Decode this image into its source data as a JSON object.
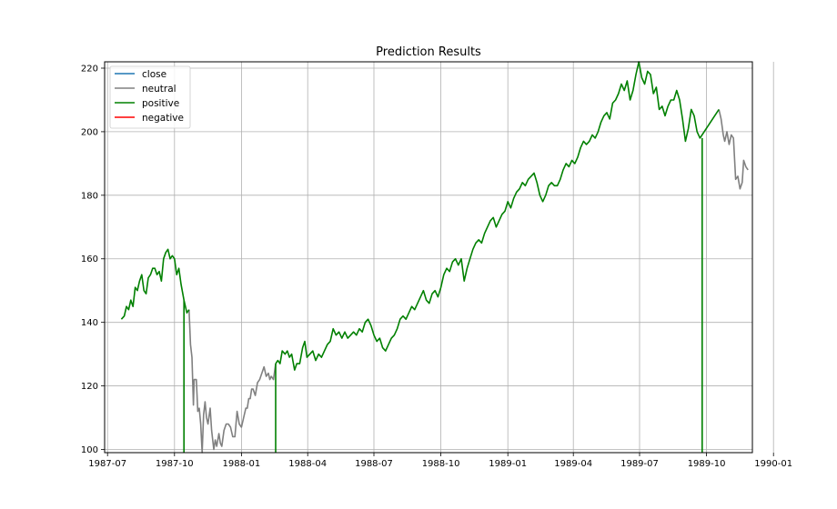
{
  "chart_data": {
    "type": "line",
    "title": "Prediction Results",
    "xlabel": "",
    "ylabel": "",
    "x_range": [
      "1987-06-27",
      "1989-12-03"
    ],
    "ylim": [
      99,
      222
    ],
    "grid": true,
    "legend_position": "top-left",
    "x_ticks": [
      "1987-07",
      "1987-10",
      "1988-01",
      "1988-04",
      "1988-07",
      "1988-10",
      "1989-01",
      "1989-04",
      "1989-07",
      "1989-10",
      "1990-01"
    ],
    "y_ticks": [
      100,
      120,
      140,
      160,
      180,
      200,
      220
    ],
    "legend": [
      {
        "name": "close",
        "color": "#1f77b4"
      },
      {
        "name": "neutral",
        "color": "#808080"
      },
      {
        "name": "positive",
        "color": "#008000"
      },
      {
        "name": "negative",
        "color": "#ff0000"
      }
    ],
    "series": [
      {
        "name": "neutral",
        "color": "#808080",
        "points": [
          [
            "1987-10-21",
            144
          ],
          [
            "1987-10-23",
            133
          ],
          [
            "1987-10-25",
            129
          ],
          [
            "1987-10-27",
            114
          ],
          [
            "1987-10-28",
            122
          ],
          [
            "1987-10-31",
            122
          ],
          [
            "1987-11-02",
            112
          ],
          [
            "1987-11-04",
            113
          ],
          [
            "1987-11-06",
            108
          ],
          [
            "1987-11-08",
            99
          ],
          [
            "1987-11-10",
            111
          ],
          [
            "1987-11-12",
            115
          ],
          [
            "1987-11-14",
            110
          ],
          [
            "1987-11-16",
            108
          ],
          [
            "1987-11-19",
            113
          ],
          [
            "1987-11-21",
            106
          ],
          [
            "1987-11-24",
            100
          ],
          [
            "1987-11-26",
            103
          ],
          [
            "1987-11-28",
            101
          ],
          [
            "1987-12-01",
            105
          ],
          [
            "1987-12-03",
            102
          ],
          [
            "1987-12-05",
            101
          ],
          [
            "1987-12-08",
            106
          ],
          [
            "1987-12-11",
            108
          ],
          [
            "1987-12-14",
            108
          ],
          [
            "1987-12-17",
            107
          ],
          [
            "1987-12-20",
            104
          ],
          [
            "1987-12-23",
            104
          ],
          [
            "1987-12-26",
            112
          ],
          [
            "1987-12-29",
            108
          ],
          [
            "1988-01-01",
            107
          ],
          [
            "1988-01-04",
            110
          ],
          [
            "1988-01-07",
            113
          ],
          [
            "1988-01-09",
            113
          ],
          [
            "1988-01-11",
            116
          ],
          [
            "1988-01-13",
            116
          ],
          [
            "1988-01-15",
            119
          ],
          [
            "1988-01-17",
            119
          ],
          [
            "1988-01-20",
            117
          ],
          [
            "1988-01-23",
            121
          ],
          [
            "1988-01-26",
            122
          ],
          [
            "1988-01-29",
            124
          ],
          [
            "1988-02-01",
            126
          ],
          [
            "1988-02-04",
            123
          ],
          [
            "1988-02-07",
            124
          ],
          [
            "1988-02-09",
            122
          ],
          [
            "1988-02-11",
            123
          ],
          [
            "1988-02-14",
            122
          ],
          [
            "1988-02-17",
            127
          ]
        ]
      },
      {
        "name": "neutral",
        "color": "#808080",
        "points": [
          [
            "1989-10-18",
            207
          ],
          [
            "1989-10-21",
            204
          ],
          [
            "1989-10-24",
            199
          ],
          [
            "1989-10-26",
            197
          ],
          [
            "1989-10-29",
            200
          ],
          [
            "1989-11-01",
            196
          ],
          [
            "1989-11-04",
            199
          ],
          [
            "1989-11-07",
            198
          ],
          [
            "1989-11-10",
            185
          ],
          [
            "1989-11-13",
            186
          ],
          [
            "1989-11-16",
            182
          ],
          [
            "1989-11-19",
            184
          ],
          [
            "1989-11-21",
            191
          ],
          [
            "1989-11-24",
            189
          ],
          [
            "1989-11-27",
            188
          ]
        ]
      },
      {
        "name": "positive",
        "color": "#008000",
        "points": [
          [
            "1987-07-20",
            141
          ],
          [
            "1987-07-24",
            142
          ],
          [
            "1987-07-27",
            145
          ],
          [
            "1987-07-30",
            144
          ],
          [
            "1987-08-02",
            147
          ],
          [
            "1987-08-05",
            145
          ],
          [
            "1987-08-08",
            151
          ],
          [
            "1987-08-11",
            150
          ],
          [
            "1987-08-14",
            153
          ],
          [
            "1987-08-17",
            155
          ],
          [
            "1987-08-20",
            150
          ],
          [
            "1987-08-23",
            149
          ],
          [
            "1987-08-26",
            154
          ],
          [
            "1987-08-29",
            155
          ],
          [
            "1987-09-01",
            157
          ],
          [
            "1987-09-04",
            157
          ],
          [
            "1987-09-07",
            155
          ],
          [
            "1987-09-10",
            156
          ],
          [
            "1987-09-13",
            153
          ],
          [
            "1987-09-16",
            160
          ],
          [
            "1987-09-19",
            162
          ],
          [
            "1987-09-22",
            163
          ],
          [
            "1987-09-25",
            160
          ],
          [
            "1987-09-28",
            161
          ],
          [
            "1987-10-01",
            160
          ],
          [
            "1987-10-04",
            155
          ],
          [
            "1987-10-07",
            157
          ],
          [
            "1987-10-10",
            152
          ],
          [
            "1987-10-14",
            147
          ],
          [
            "1987-10-18",
            143
          ],
          [
            "1987-10-21",
            144
          ]
        ]
      },
      {
        "name": "positive",
        "color": "#008000",
        "points": [
          [
            "1988-02-17",
            127
          ],
          [
            "1988-02-20",
            128
          ],
          [
            "1988-02-23",
            127
          ],
          [
            "1988-02-26",
            131
          ],
          [
            "1988-03-01",
            130
          ],
          [
            "1988-03-04",
            131
          ],
          [
            "1988-03-07",
            129
          ],
          [
            "1988-03-10",
            130
          ],
          [
            "1988-03-14",
            125
          ],
          [
            "1988-03-17",
            127
          ],
          [
            "1988-03-21",
            127
          ],
          [
            "1988-03-25",
            132
          ],
          [
            "1988-03-28",
            134
          ],
          [
            "1988-03-31",
            129
          ],
          [
            "1988-04-04",
            130
          ],
          [
            "1988-04-08",
            131
          ],
          [
            "1988-04-12",
            128
          ],
          [
            "1988-04-16",
            130
          ],
          [
            "1988-04-20",
            129
          ],
          [
            "1988-04-24",
            131
          ],
          [
            "1988-04-28",
            133
          ],
          [
            "1988-05-02",
            134
          ],
          [
            "1988-05-06",
            138
          ],
          [
            "1988-05-10",
            136
          ],
          [
            "1988-05-14",
            137
          ],
          [
            "1988-05-18",
            135
          ],
          [
            "1988-05-22",
            137
          ],
          [
            "1988-05-26",
            135
          ],
          [
            "1988-05-30",
            136
          ],
          [
            "1988-06-03",
            137
          ],
          [
            "1988-06-07",
            136
          ],
          [
            "1988-06-11",
            138
          ],
          [
            "1988-06-15",
            137
          ],
          [
            "1988-06-19",
            140
          ],
          [
            "1988-06-23",
            141
          ],
          [
            "1988-06-27",
            139
          ],
          [
            "1988-07-01",
            136
          ],
          [
            "1988-07-05",
            134
          ],
          [
            "1988-07-09",
            135
          ],
          [
            "1988-07-13",
            132
          ],
          [
            "1988-07-17",
            131
          ],
          [
            "1988-07-21",
            133
          ],
          [
            "1988-07-25",
            135
          ],
          [
            "1988-07-29",
            136
          ],
          [
            "1988-08-02",
            138
          ],
          [
            "1988-08-06",
            141
          ],
          [
            "1988-08-10",
            142
          ],
          [
            "1988-08-14",
            141
          ],
          [
            "1988-08-18",
            143
          ],
          [
            "1988-08-22",
            145
          ],
          [
            "1988-08-26",
            144
          ],
          [
            "1988-08-30",
            146
          ],
          [
            "1988-09-03",
            148
          ],
          [
            "1988-09-07",
            150
          ],
          [
            "1988-09-11",
            147
          ],
          [
            "1988-09-15",
            146
          ],
          [
            "1988-09-19",
            149
          ],
          [
            "1988-09-23",
            150
          ],
          [
            "1988-09-27",
            148
          ],
          [
            "1988-10-01",
            151
          ],
          [
            "1988-10-05",
            155
          ],
          [
            "1988-10-09",
            157
          ],
          [
            "1988-10-13",
            156
          ],
          [
            "1988-10-17",
            159
          ],
          [
            "1988-10-21",
            160
          ],
          [
            "1988-10-25",
            158
          ],
          [
            "1988-10-29",
            160
          ],
          [
            "1988-11-02",
            153
          ],
          [
            "1988-11-06",
            157
          ],
          [
            "1988-11-10",
            160
          ],
          [
            "1988-11-14",
            163
          ],
          [
            "1988-11-18",
            165
          ],
          [
            "1988-11-22",
            166
          ],
          [
            "1988-11-26",
            165
          ],
          [
            "1988-11-30",
            168
          ],
          [
            "1988-12-04",
            170
          ],
          [
            "1988-12-08",
            172
          ],
          [
            "1988-12-12",
            173
          ],
          [
            "1988-12-16",
            170
          ],
          [
            "1988-12-20",
            172
          ],
          [
            "1988-12-24",
            174
          ],
          [
            "1988-12-28",
            175
          ],
          [
            "1989-01-01",
            178
          ],
          [
            "1989-01-05",
            176
          ],
          [
            "1989-01-09",
            179
          ],
          [
            "1989-01-13",
            181
          ],
          [
            "1989-01-17",
            182
          ],
          [
            "1989-01-21",
            184
          ],
          [
            "1989-01-25",
            183
          ],
          [
            "1989-01-29",
            185
          ],
          [
            "1989-02-02",
            186
          ],
          [
            "1989-02-06",
            187
          ],
          [
            "1989-02-10",
            184
          ],
          [
            "1989-02-14",
            180
          ],
          [
            "1989-02-18",
            178
          ],
          [
            "1989-02-22",
            180
          ],
          [
            "1989-02-26",
            183
          ],
          [
            "1989-03-02",
            184
          ],
          [
            "1989-03-06",
            183
          ],
          [
            "1989-03-10",
            183
          ],
          [
            "1989-03-14",
            185
          ],
          [
            "1989-03-18",
            188
          ],
          [
            "1989-03-22",
            190
          ],
          [
            "1989-03-26",
            189
          ],
          [
            "1989-03-30",
            191
          ],
          [
            "1989-04-03",
            190
          ],
          [
            "1989-04-07",
            192
          ],
          [
            "1989-04-11",
            195
          ],
          [
            "1989-04-15",
            197
          ],
          [
            "1989-04-19",
            196
          ],
          [
            "1989-04-23",
            197
          ],
          [
            "1989-04-27",
            199
          ],
          [
            "1989-05-01",
            198
          ],
          [
            "1989-05-05",
            200
          ],
          [
            "1989-05-09",
            203
          ],
          [
            "1989-05-13",
            205
          ],
          [
            "1989-05-17",
            206
          ],
          [
            "1989-05-21",
            204
          ],
          [
            "1989-05-25",
            209
          ],
          [
            "1989-05-29",
            210
          ],
          [
            "1989-06-02",
            212
          ],
          [
            "1989-06-06",
            215
          ],
          [
            "1989-06-10",
            213
          ],
          [
            "1989-06-14",
            216
          ],
          [
            "1989-06-18",
            210
          ],
          [
            "1989-06-22",
            213
          ],
          [
            "1989-06-26",
            218
          ],
          [
            "1989-06-30",
            222
          ],
          [
            "1989-07-04",
            217
          ],
          [
            "1989-07-08",
            215
          ],
          [
            "1989-07-12",
            219
          ],
          [
            "1989-07-16",
            218
          ],
          [
            "1989-07-20",
            212
          ],
          [
            "1989-07-24",
            214
          ],
          [
            "1989-07-28",
            207
          ],
          [
            "1989-08-01",
            208
          ],
          [
            "1989-08-05",
            205
          ],
          [
            "1989-08-09",
            208
          ],
          [
            "1989-08-13",
            210
          ],
          [
            "1989-08-17",
            210
          ],
          [
            "1989-08-21",
            213
          ],
          [
            "1989-08-25",
            210
          ],
          [
            "1989-08-29",
            204
          ],
          [
            "1989-09-02",
            197
          ],
          [
            "1989-09-06",
            201
          ],
          [
            "1989-09-10",
            207
          ],
          [
            "1989-09-14",
            205
          ],
          [
            "1989-09-18",
            200
          ],
          [
            "1989-09-22",
            198
          ],
          [
            "1989-10-18",
            207
          ]
        ]
      },
      {
        "name": "positive",
        "color": "#008000",
        "points": [
          [
            "1987-10-14",
            147
          ],
          [
            "1987-10-14",
            99
          ]
        ]
      },
      {
        "name": "positive",
        "color": "#008000",
        "points": [
          [
            "1988-02-17",
            127
          ],
          [
            "1988-02-17",
            99
          ]
        ]
      },
      {
        "name": "positive",
        "color": "#008000",
        "points": [
          [
            "1989-09-25",
            198
          ],
          [
            "1989-09-25",
            99
          ]
        ]
      }
    ]
  }
}
